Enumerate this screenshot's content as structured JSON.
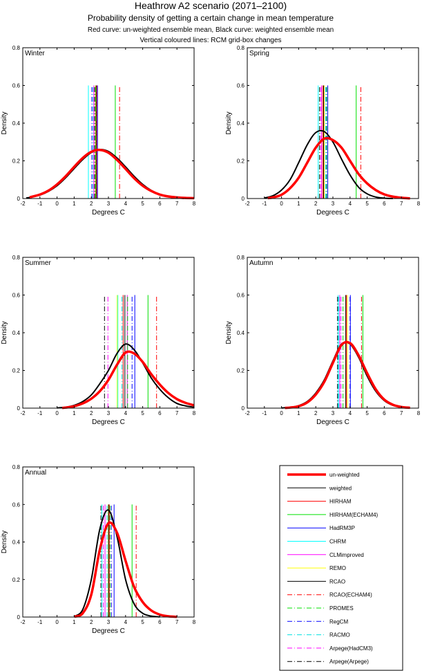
{
  "titles": {
    "main": "Heathrow A2 scenario (2071–2100)",
    "sub": "Probability density of getting a certain change in mean temperature",
    "line3": "Red curve: un-weighted ensemble mean, Black curve: weighted ensemble mean",
    "line4": "Vertical coloured lines: RCM grid-box changes"
  },
  "chart_data": {
    "type": "line",
    "xlabel": "Degrees C",
    "ylabel": "Density",
    "xlim": [
      -2,
      8
    ],
    "ylim": [
      0,
      0.8
    ],
    "xticks": [
      "-2",
      "-1",
      "0",
      "1",
      "2",
      "3",
      "4",
      "5",
      "6",
      "7",
      "8"
    ],
    "yticks": [
      "0",
      "0.2",
      "0.4",
      "0.6",
      "0.8"
    ],
    "model_line_top": 0.6,
    "legend": {
      "placement": "bottom-right",
      "curves": [
        {
          "label": "un-weighted",
          "color": "#ff0000",
          "style": "thick"
        },
        {
          "label": "weighted",
          "color": "#000000",
          "style": "solid"
        }
      ],
      "models": [
        {
          "label": "HIRHAM",
          "color": "#ff0000",
          "style": "solid"
        },
        {
          "label": "HIRHAM(ECHAM4)",
          "color": "#00e000",
          "style": "solid"
        },
        {
          "label": "HadRM3P",
          "color": "#0000ff",
          "style": "solid"
        },
        {
          "label": "CHRM",
          "color": "#00ffff",
          "style": "solid"
        },
        {
          "label": "CLMimproved",
          "color": "#ff00ff",
          "style": "solid"
        },
        {
          "label": "REMO",
          "color": "#ffff00",
          "style": "solid"
        },
        {
          "label": "RCAO",
          "color": "#000000",
          "style": "solid"
        },
        {
          "label": "RCAO(ECHAM4)",
          "color": "#ff0000",
          "style": "dashdot"
        },
        {
          "label": "PROMES",
          "color": "#00e000",
          "style": "dashdot"
        },
        {
          "label": "RegCM",
          "color": "#0000ff",
          "style": "dashdot"
        },
        {
          "label": "RACMO",
          "color": "#00e0e0",
          "style": "dashdot"
        },
        {
          "label": "Arpege(HadCM3)",
          "color": "#ff00ff",
          "style": "dashdot"
        },
        {
          "label": "Arpege(Arpege)",
          "color": "#000000",
          "style": "dashdot"
        }
      ]
    },
    "panels": [
      {
        "title": "Winter",
        "model_values": [
          2.32,
          3.4,
          2.36,
          1.83,
          2.15,
          2.24,
          2.28,
          3.65,
          2.26,
          2.03,
          2.1,
          2.15,
          2.2
        ],
        "unweighted": [
          [
            -1.6,
            0.006
          ],
          [
            -1.5,
            0.009
          ],
          [
            -1,
            0.021
          ],
          [
            -0.5,
            0.042
          ],
          [
            0,
            0.075
          ],
          [
            0.5,
            0.118
          ],
          [
            1,
            0.168
          ],
          [
            1.5,
            0.215
          ],
          [
            2,
            0.248
          ],
          [
            2.5,
            0.258
          ],
          [
            3,
            0.243
          ],
          [
            3.5,
            0.205
          ],
          [
            4,
            0.157
          ],
          [
            4.5,
            0.108
          ],
          [
            5,
            0.068
          ],
          [
            5.5,
            0.04
          ],
          [
            6,
            0.021
          ],
          [
            6.5,
            0.011
          ],
          [
            7,
            0.006
          ],
          [
            7.5,
            0.003
          ],
          [
            8,
            0.002
          ]
        ],
        "weighted": [
          [
            -1.8,
            0.003
          ],
          [
            -1.5,
            0.007
          ],
          [
            -1,
            0.018
          ],
          [
            -0.5,
            0.038
          ],
          [
            0,
            0.068
          ],
          [
            0.5,
            0.11
          ],
          [
            1,
            0.159
          ],
          [
            1.5,
            0.207
          ],
          [
            2,
            0.244
          ],
          [
            2.5,
            0.26
          ],
          [
            3,
            0.25
          ],
          [
            3.5,
            0.215
          ],
          [
            4,
            0.168
          ],
          [
            4.5,
            0.118
          ],
          [
            5,
            0.075
          ],
          [
            5.5,
            0.043
          ],
          [
            6,
            0.021
          ],
          [
            6.5,
            0.009
          ],
          [
            7,
            0.004
          ],
          [
            7.4,
            0.001
          ]
        ]
      },
      {
        "title": "Spring",
        "model_values": [
          2.42,
          4.36,
          2.7,
          2.14,
          2.34,
          2.5,
          2.46,
          4.63,
          2.64,
          2.6,
          2.58,
          2.3,
          2.22
        ],
        "unweighted": [
          [
            -0.8,
            0.002
          ],
          [
            -0.5,
            0.006
          ],
          [
            0,
            0.02
          ],
          [
            0.5,
            0.055
          ],
          [
            1,
            0.11
          ],
          [
            1.5,
            0.19
          ],
          [
            2,
            0.27
          ],
          [
            2.5,
            0.318
          ],
          [
            3,
            0.31
          ],
          [
            3.5,
            0.27
          ],
          [
            4,
            0.2
          ],
          [
            4.5,
            0.13
          ],
          [
            5,
            0.08
          ],
          [
            5.5,
            0.045
          ],
          [
            6,
            0.022
          ],
          [
            6.5,
            0.01
          ],
          [
            7,
            0.004
          ],
          [
            7.5,
            0.001
          ]
        ],
        "weighted": [
          [
            -1,
            0.003
          ],
          [
            -0.5,
            0.015
          ],
          [
            0,
            0.045
          ],
          [
            0.5,
            0.1
          ],
          [
            1,
            0.19
          ],
          [
            1.5,
            0.285
          ],
          [
            2,
            0.35
          ],
          [
            2.5,
            0.355
          ],
          [
            3,
            0.3
          ],
          [
            3.5,
            0.21
          ],
          [
            4,
            0.125
          ],
          [
            4.5,
            0.06
          ],
          [
            5,
            0.025
          ],
          [
            5.5,
            0.008
          ],
          [
            6,
            0.002
          ],
          [
            6.5,
            0.0
          ]
        ]
      },
      {
        "title": "Summer",
        "model_values": [
          3.86,
          5.31,
          4.54,
          3.55,
          4.1,
          3.51,
          3.96,
          5.81,
          4.12,
          4.38,
          3.79,
          2.97,
          2.77
        ],
        "unweighted": [
          [
            0.3,
            0.001
          ],
          [
            0.5,
            0.003
          ],
          [
            1,
            0.01
          ],
          [
            1.5,
            0.025
          ],
          [
            2,
            0.05
          ],
          [
            2.5,
            0.09
          ],
          [
            3,
            0.15
          ],
          [
            3.5,
            0.23
          ],
          [
            4,
            0.295
          ],
          [
            4.5,
            0.29
          ],
          [
            5,
            0.245
          ],
          [
            5.5,
            0.18
          ],
          [
            6,
            0.125
          ],
          [
            6.5,
            0.08
          ],
          [
            7,
            0.048
          ],
          [
            7.5,
            0.028
          ],
          [
            8,
            0.015
          ]
        ],
        "weighted": [
          [
            0,
            0.001
          ],
          [
            0.5,
            0.005
          ],
          [
            1,
            0.015
          ],
          [
            1.5,
            0.035
          ],
          [
            2,
            0.07
          ],
          [
            2.5,
            0.13
          ],
          [
            3,
            0.2
          ],
          [
            3.5,
            0.29
          ],
          [
            4,
            0.34
          ],
          [
            4.5,
            0.31
          ],
          [
            5,
            0.24
          ],
          [
            5.5,
            0.16
          ],
          [
            6,
            0.1
          ],
          [
            6.5,
            0.055
          ],
          [
            7,
            0.025
          ],
          [
            7.5,
            0.012
          ],
          [
            8,
            0.005
          ]
        ]
      },
      {
        "title": "Autumn",
        "model_values": [
          3.79,
          4.75,
          4.02,
          3.31,
          3.4,
          3.85,
          3.75,
          4.67,
          3.59,
          4.0,
          3.35,
          3.47,
          3.27
        ],
        "unweighted": [
          [
            0.2,
            0.001
          ],
          [
            0.5,
            0.003
          ],
          [
            1,
            0.01
          ],
          [
            1.5,
            0.03
          ],
          [
            2,
            0.072
          ],
          [
            2.5,
            0.14
          ],
          [
            3,
            0.24
          ],
          [
            3.5,
            0.335
          ],
          [
            4,
            0.345
          ],
          [
            4.5,
            0.28
          ],
          [
            5,
            0.185
          ],
          [
            5.5,
            0.1
          ],
          [
            6,
            0.045
          ],
          [
            6.5,
            0.018
          ],
          [
            7,
            0.006
          ],
          [
            7.5,
            0.002
          ]
        ],
        "weighted": [
          [
            0,
            0.001
          ],
          [
            0.5,
            0.004
          ],
          [
            1,
            0.013
          ],
          [
            1.5,
            0.035
          ],
          [
            2,
            0.08
          ],
          [
            2.5,
            0.15
          ],
          [
            3,
            0.25
          ],
          [
            3.5,
            0.34
          ],
          [
            4,
            0.34
          ],
          [
            4.5,
            0.27
          ],
          [
            5,
            0.17
          ],
          [
            5.5,
            0.09
          ],
          [
            6,
            0.04
          ],
          [
            6.5,
            0.015
          ],
          [
            7,
            0.005
          ],
          [
            7.5,
            0.001
          ]
        ]
      },
      {
        "title": "Annual",
        "model_values": [
          3.05,
          4.38,
          3.33,
          2.62,
          2.8,
          2.99,
          3.01,
          4.62,
          3.09,
          3.17,
          2.92,
          2.7,
          2.56
        ],
        "unweighted": [
          [
            1,
            0.002
          ],
          [
            1.5,
            0.02
          ],
          [
            2,
            0.12
          ],
          [
            2.5,
            0.36
          ],
          [
            3,
            0.5
          ],
          [
            3.5,
            0.45
          ],
          [
            4,
            0.3
          ],
          [
            4.5,
            0.16
          ],
          [
            5,
            0.08
          ],
          [
            5.5,
            0.035
          ],
          [
            6,
            0.013
          ],
          [
            6.5,
            0.004
          ],
          [
            7,
            0.001
          ]
        ],
        "weighted": [
          [
            1,
            0.003
          ],
          [
            1.5,
            0.04
          ],
          [
            2,
            0.2
          ],
          [
            2.5,
            0.47
          ],
          [
            3,
            0.57
          ],
          [
            3.5,
            0.43
          ],
          [
            4,
            0.2
          ],
          [
            4.5,
            0.07
          ],
          [
            5,
            0.02
          ],
          [
            5.5,
            0.005
          ],
          [
            6,
            0.001
          ]
        ]
      }
    ]
  }
}
